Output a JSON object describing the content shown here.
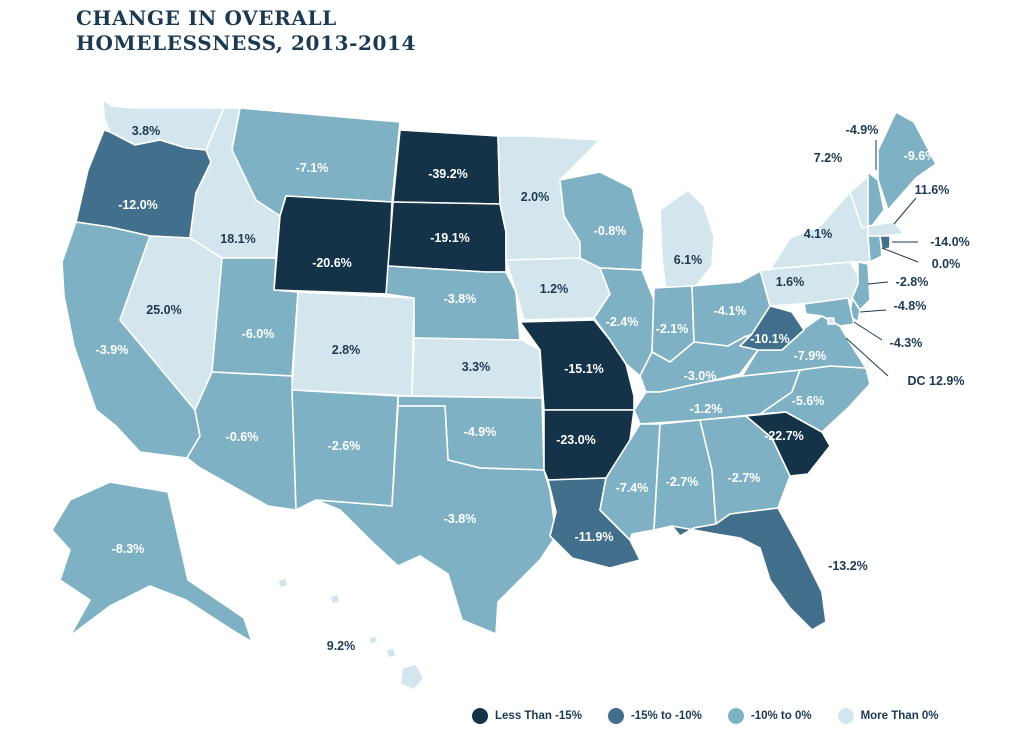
{
  "title": [
    "CHANGE IN OVERALL",
    "HOMELESSNESS, 2013-2014"
  ],
  "colors": {
    "cat1": "#143349",
    "cat2": "#426f8c",
    "cat3": "#7fb1c4",
    "cat4": "#d3e6ee",
    "label_dark": "#1b3a52",
    "label_light": "#ffffff"
  },
  "legend": [
    {
      "label": "Less Than -15%",
      "category": "cat1"
    },
    {
      "label": "-15% to -10%",
      "category": "cat2"
    },
    {
      "label": "-10% to 0%",
      "category": "cat3"
    },
    {
      "label": "More Than 0%",
      "category": "cat4"
    }
  ],
  "states": [
    {
      "id": "WA",
      "value": "3.8%",
      "category": "cat4"
    },
    {
      "id": "OR",
      "value": "-12.0%",
      "category": "cat2"
    },
    {
      "id": "CA",
      "value": "-3.9%",
      "category": "cat3"
    },
    {
      "id": "ID",
      "value": "18.1%",
      "category": "cat4"
    },
    {
      "id": "NV",
      "value": "25.0%",
      "category": "cat4"
    },
    {
      "id": "MT",
      "value": "-7.1%",
      "category": "cat3"
    },
    {
      "id": "WY",
      "value": "-20.6%",
      "category": "cat1"
    },
    {
      "id": "UT",
      "value": "-6.0%",
      "category": "cat3"
    },
    {
      "id": "AZ",
      "value": "-0.6%",
      "category": "cat3"
    },
    {
      "id": "CO",
      "value": "2.8%",
      "category": "cat4"
    },
    {
      "id": "NM",
      "value": "-2.6%",
      "category": "cat3"
    },
    {
      "id": "ND",
      "value": "-39.2%",
      "category": "cat1"
    },
    {
      "id": "SD",
      "value": "-19.1%",
      "category": "cat1"
    },
    {
      "id": "NE",
      "value": "-3.8%",
      "category": "cat3"
    },
    {
      "id": "KS",
      "value": "3.3%",
      "category": "cat4"
    },
    {
      "id": "OK",
      "value": "-4.9%",
      "category": "cat3"
    },
    {
      "id": "TX",
      "value": "-3.8%",
      "category": "cat3"
    },
    {
      "id": "MN",
      "value": "2.0%",
      "category": "cat4"
    },
    {
      "id": "IA",
      "value": "1.2%",
      "category": "cat4"
    },
    {
      "id": "MO",
      "value": "-15.1%",
      "category": "cat1"
    },
    {
      "id": "AR",
      "value": "-23.0%",
      "category": "cat1"
    },
    {
      "id": "LA",
      "value": "-11.9%",
      "category": "cat2"
    },
    {
      "id": "WI",
      "value": "-0.8%",
      "category": "cat3"
    },
    {
      "id": "IL",
      "value": "-2.4%",
      "category": "cat3"
    },
    {
      "id": "MI",
      "value": "6.1%",
      "category": "cat4"
    },
    {
      "id": "IN",
      "value": "-2.1%",
      "category": "cat3"
    },
    {
      "id": "OH",
      "value": "-4.1%",
      "category": "cat3"
    },
    {
      "id": "KY",
      "value": "-3.0%",
      "category": "cat3"
    },
    {
      "id": "TN",
      "value": "-1.2%",
      "category": "cat3"
    },
    {
      "id": "MS",
      "value": "-7.4%",
      "category": "cat3"
    },
    {
      "id": "AL",
      "value": "-2.7%",
      "category": "cat3"
    },
    {
      "id": "GA",
      "value": "-2.7%",
      "category": "cat3"
    },
    {
      "id": "FL",
      "value": "-13.2%",
      "category": "cat2"
    },
    {
      "id": "SC",
      "value": "-22.7%",
      "category": "cat1"
    },
    {
      "id": "NC",
      "value": "-5.6%",
      "category": "cat3"
    },
    {
      "id": "VA",
      "value": "-7.9%",
      "category": "cat3"
    },
    {
      "id": "WV",
      "value": "-10.1%",
      "category": "cat2"
    },
    {
      "id": "PA",
      "value": "1.6%",
      "category": "cat4"
    },
    {
      "id": "NY",
      "value": "4.1%",
      "category": "cat4"
    },
    {
      "id": "VT",
      "value": "7.2%",
      "category": "cat4"
    },
    {
      "id": "NH",
      "value": "-4.9%",
      "category": "cat3"
    },
    {
      "id": "ME",
      "value": "-9.6%",
      "category": "cat3"
    },
    {
      "id": "MA",
      "value": "11.6%",
      "category": "cat4"
    },
    {
      "id": "RI",
      "value": "-14.0%",
      "category": "cat2"
    },
    {
      "id": "CT",
      "value": "0.0%",
      "category": "cat3"
    },
    {
      "id": "NJ",
      "value": "-2.8%",
      "category": "cat3"
    },
    {
      "id": "DE",
      "value": "-4.8%",
      "category": "cat3"
    },
    {
      "id": "MD",
      "value": "-4.3%",
      "category": "cat3"
    },
    {
      "id": "DC",
      "value": "DC 12.9%",
      "category": "cat4"
    },
    {
      "id": "AK",
      "value": "-8.3%",
      "category": "cat3"
    },
    {
      "id": "HI",
      "value": "9.2%",
      "category": "cat4"
    }
  ]
}
